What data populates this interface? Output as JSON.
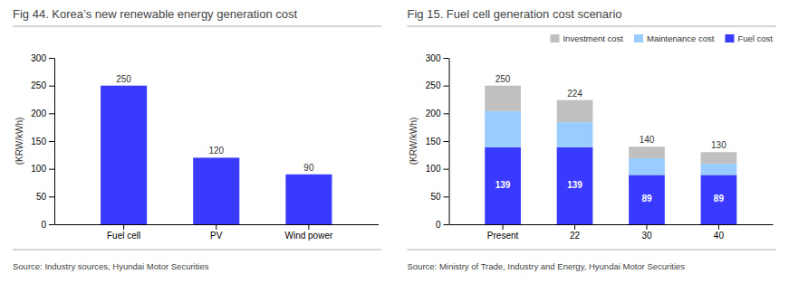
{
  "chart_data": [
    {
      "type": "bar",
      "title": "Fig 44. Korea’s new renewable energy generation cost",
      "ylabel": "(KRW/kWh)",
      "source": "Source: Industry sources, Hyundai Motor Securities",
      "categories": [
        "Fuel cell",
        "PV",
        "Wind power"
      ],
      "values": [
        250,
        120,
        90
      ],
      "color": "#3A3AFF",
      "ylim": [
        0,
        300
      ],
      "yticks": [
        0,
        50,
        100,
        150,
        200,
        250,
        300
      ],
      "data_labels": true,
      "grid": false
    },
    {
      "type": "bar",
      "title": "Fig 15. Fuel cell generation cost scenario",
      "ylabel": "(KRW/kWh)",
      "source": "Source: Ministry of Trade, Industry and Energy, Hyundai Motor Securities",
      "categories": [
        "Present",
        "22",
        "30",
        "40"
      ],
      "stacked": true,
      "series": [
        {
          "name": "Fuel cost",
          "color": "#3A3AFF",
          "values": [
            139,
            139,
            89,
            89
          ],
          "data_labels": true
        },
        {
          "name": "Maintenance cost",
          "color": "#99CCFF",
          "values": [
            65,
            45,
            30,
            20
          ]
        },
        {
          "name": "Investment cost",
          "color": "#C0C0C0",
          "values": [
            46,
            40,
            21,
            21
          ]
        }
      ],
      "totals": [
        250,
        224,
        140,
        130
      ],
      "ylim": [
        0,
        300
      ],
      "yticks": [
        0,
        50,
        100,
        150,
        200,
        250,
        300
      ],
      "legend": "upper right",
      "grid": false
    }
  ]
}
